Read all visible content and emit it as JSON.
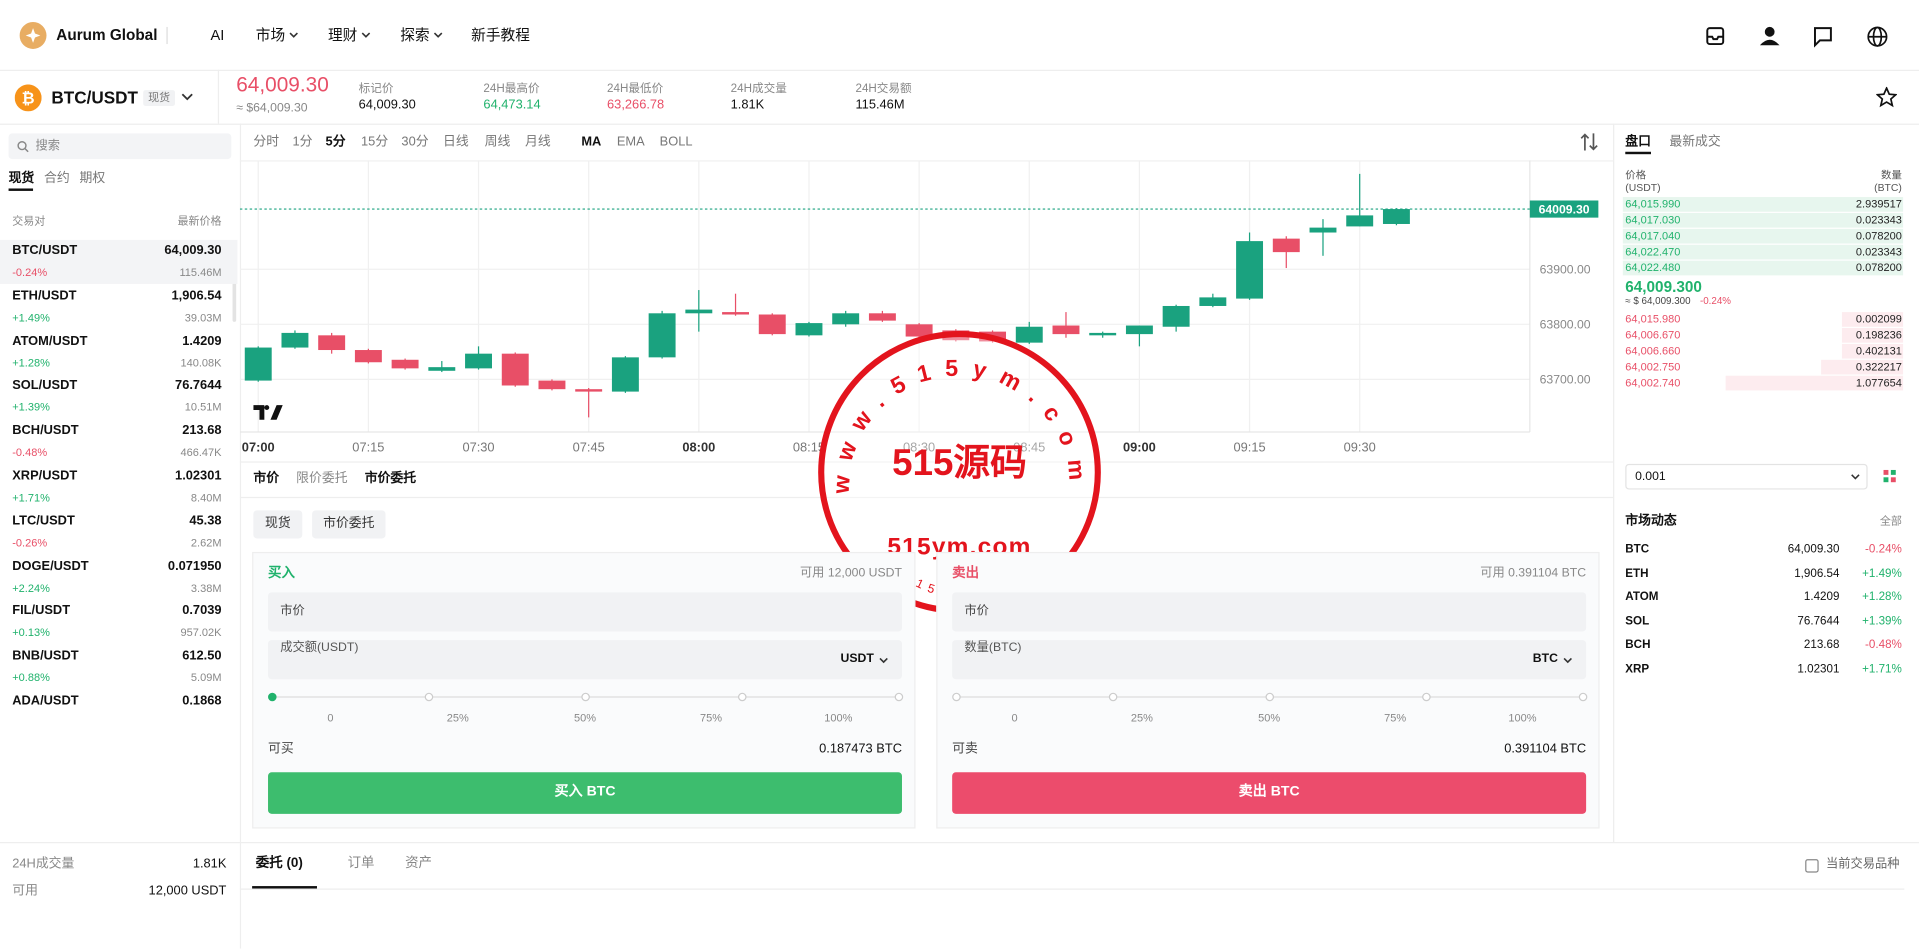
{
  "header": {
    "brand": "Aurum Global",
    "nav": [
      "AI",
      "市场",
      "理财",
      "探索",
      "新手教程"
    ]
  },
  "ticker": {
    "pair": "BTC/USDT",
    "tag": "现货",
    "price": "64,009.30",
    "price_usd": "≈ $64,009.30",
    "stats": [
      {
        "label": "标记价",
        "value": "64,009.30"
      },
      {
        "label": "24H最高价",
        "value": "64,473.14"
      },
      {
        "label": "24H最低价",
        "value": "63,266.78"
      },
      {
        "label": "24H成交量",
        "value": "1.81K"
      },
      {
        "label": "24H交易额",
        "value": "115.46M"
      }
    ]
  },
  "sidebar": {
    "search": "搜索",
    "tabs": [
      "现货",
      "合约",
      "期权"
    ],
    "columns": [
      "交易对",
      "最新价格"
    ],
    "markets": [
      {
        "pair": "BTC/USDT",
        "price": "64,009.30",
        "change": "-0.24%",
        "volume": "115.46M"
      },
      {
        "pair": "ETH/USDT",
        "price": "1,906.54",
        "change": "+1.49%",
        "volume": "39.03M"
      },
      {
        "pair": "ATOM/USDT",
        "price": "1.4209",
        "change": "+1.28%",
        "volume": "140.08K"
      },
      {
        "pair": "SOL/USDT",
        "price": "76.7644",
        "change": "+1.39%",
        "volume": "10.51M"
      },
      {
        "pair": "BCH/USDT",
        "price": "213.68",
        "change": "-0.48%",
        "volume": "466.47K"
      },
      {
        "pair": "XRP/USDT",
        "price": "1.02301",
        "change": "+1.71%",
        "volume": "8.40M"
      },
      {
        "pair": "LTC/USDT",
        "price": "45.38",
        "change": "-0.26%",
        "volume": "2.62M"
      },
      {
        "pair": "DOGE/USDT",
        "price": "0.071950",
        "change": "+2.24%",
        "volume": "3.38M"
      },
      {
        "pair": "FIL/USDT",
        "price": "0.7039",
        "change": "+0.13%",
        "volume": "957.02K"
      },
      {
        "pair": "BNB/USDT",
        "price": "612.50",
        "change": "+0.88%",
        "volume": "5.09M"
      },
      {
        "pair": "ADA/USDT",
        "price": "0.1868"
      }
    ],
    "summary": [
      {
        "label": "24H成交量",
        "value": "1.81K"
      },
      {
        "label": "可用",
        "value": "12,000 USDT"
      }
    ]
  },
  "toolbar": {
    "intervals": [
      "分时",
      "1分",
      "5分",
      "15分",
      "30分",
      "日线",
      "周线",
      "月线"
    ],
    "indicators": [
      "MA",
      "EMA",
      "BOLL"
    ]
  },
  "chart_data": {
    "type": "candlestick",
    "categories": [
      "07:00",
      null,
      null,
      "07:15",
      null,
      null,
      "07:30",
      null,
      null,
      "07:45",
      null,
      null,
      "08:00",
      null,
      null,
      "08:15",
      null,
      null,
      "08:30",
      null,
      null,
      "08:45",
      null,
      null,
      "09:00",
      null,
      null,
      "09:15",
      null,
      null,
      "09:30",
      null
    ],
    "open": [
      63697.8,
      63757.8,
      63780,
      63753.3,
      63735.6,
      63715.6,
      63720,
      63746.7,
      63697.8,
      63682.2,
      63677.8,
      63740,
      63820,
      63822.2,
      63817.8,
      63780,
      63800,
      63820,
      63800,
      63788.9,
      63786.7,
      63766.7,
      63797.8,
      63780,
      63782.2,
      63795.6,
      63833.3,
      63846.7,
      63955.6,
      63966.7,
      63977.8,
      63982.2
    ],
    "high": [
      63760,
      63788.9,
      63784.4,
      63755.6,
      63737.8,
      63733.3,
      63760,
      63748.9,
      63700,
      63684.4,
      63742.2,
      63824.4,
      63862.2,
      63855.6,
      63820,
      63804.4,
      63824.4,
      63824.4,
      63802.2,
      63791.1,
      63788.9,
      63804.4,
      63822.2,
      63786.7,
      63797.8,
      63835.6,
      63855.6,
      63966.7,
      63960,
      63991.1,
      64073.3,
      64011.1
    ],
    "low": [
      63695.6,
      63755.6,
      63746.7,
      63728.9,
      63717.8,
      63713.3,
      63717.8,
      63686.7,
      63680,
      63631.1,
      63675.6,
      63737.8,
      63786.7,
      63815.6,
      63780,
      63777.8,
      63795.6,
      63804.4,
      63775.6,
      63768.9,
      63766.7,
      63764.4,
      63775.6,
      63775.6,
      63760,
      63786.7,
      63831.1,
      63844.4,
      63902.2,
      63924.4,
      63977.8,
      63980
    ],
    "close": [
      63757.8,
      63784.4,
      63753.3,
      63731.1,
      63720,
      63722.2,
      63746.7,
      63688.9,
      63682.2,
      63677.8,
      63740,
      63820,
      63826.7,
      63817.8,
      63782.2,
      63802.2,
      63820,
      63806.7,
      63777.8,
      63771.1,
      63768.9,
      63795.6,
      63782.2,
      63784.4,
      63797.8,
      63833.3,
      63848.9,
      63951.1,
      63931.1,
      63975.6,
      63997.8,
      64009.3
    ],
    "colors": {
      "up": "#1aa27f",
      "down": "#e84f67"
    },
    "ylim": [
      63604.4,
      64097.8
    ],
    "yticks": [
      {
        "value": 63700,
        "label": "63700.00"
      },
      {
        "value": 63800,
        "label": "63800.00"
      },
      {
        "value": 63900,
        "label": "63900.00"
      }
    ],
    "last_price": {
      "value": 64009.3,
      "label": "64009.30"
    },
    "grid": true
  },
  "order": {
    "tabs": [
      "市价",
      "限价委托",
      "市价委托"
    ],
    "chips": [
      "现货",
      "市价委托"
    ],
    "buy": {
      "title": "买入",
      "available": "可用 12,000 USDT",
      "price_field": "市价",
      "amount_label": "成交额(USDT)",
      "unit": "USDT",
      "slider": [
        "0",
        "25%",
        "50%",
        "75%",
        "100%"
      ],
      "max_label": "可买",
      "max_value": "0.187473 BTC",
      "button": "买入 BTC"
    },
    "sell": {
      "title": "卖出",
      "available": "可用 0.391104 BTC",
      "price_field": "市价",
      "amount_label": "数量(BTC)",
      "unit": "BTC",
      "slider": [
        "0",
        "25%",
        "50%",
        "75%",
        "100%"
      ],
      "max_label": "可卖",
      "max_value": "0.391104 BTC",
      "button": "卖出 BTC"
    }
  },
  "orders": {
    "tabs": [
      "委托 (0)",
      "订单",
      "资产"
    ],
    "filter": "当前交易品种"
  },
  "orderbook": {
    "tabs": [
      "盘口",
      "最新成交"
    ],
    "price_header": [
      "价格",
      "(USDT)"
    ],
    "qty_header": [
      "数量",
      "(BTC)"
    ],
    "asks": [
      [
        "64,015.990",
        "2.939517"
      ],
      [
        "64,017.030",
        "0.023343"
      ],
      [
        "64,017.040",
        "0.078200"
      ],
      [
        "64,022.470",
        "0.023343"
      ],
      [
        "64,022.480",
        "0.078200"
      ]
    ],
    "last": "64,009.300",
    "last_usd": "≈ $ 64,009.300",
    "last_change": "-0.24%",
    "bids": [
      [
        "64,015.980",
        "0.002099"
      ],
      [
        "64,006.670",
        "0.198236"
      ],
      [
        "64,006.660",
        "0.402131"
      ],
      [
        "64,002.750",
        "0.322217"
      ],
      [
        "64,002.740",
        "1.077654"
      ]
    ],
    "precision": "0.001"
  },
  "market_feed": {
    "title": "市场动态",
    "more": "全部",
    "rows": [
      [
        "BTC",
        "64,009.30",
        "-0.24%"
      ],
      [
        "ETH",
        "1,906.54",
        "+1.49%"
      ],
      [
        "ATOM",
        "1.4209",
        "+1.28%"
      ],
      [
        "SOL",
        "76.7644",
        "+1.39%"
      ],
      [
        "BCH",
        "213.68",
        "-0.48%"
      ],
      [
        "XRP",
        "1.02301",
        "+1.71%"
      ]
    ]
  },
  "watermark": {
    "ring": "www.515ym.com",
    "main": "515源码",
    "url": "515ym.com"
  }
}
